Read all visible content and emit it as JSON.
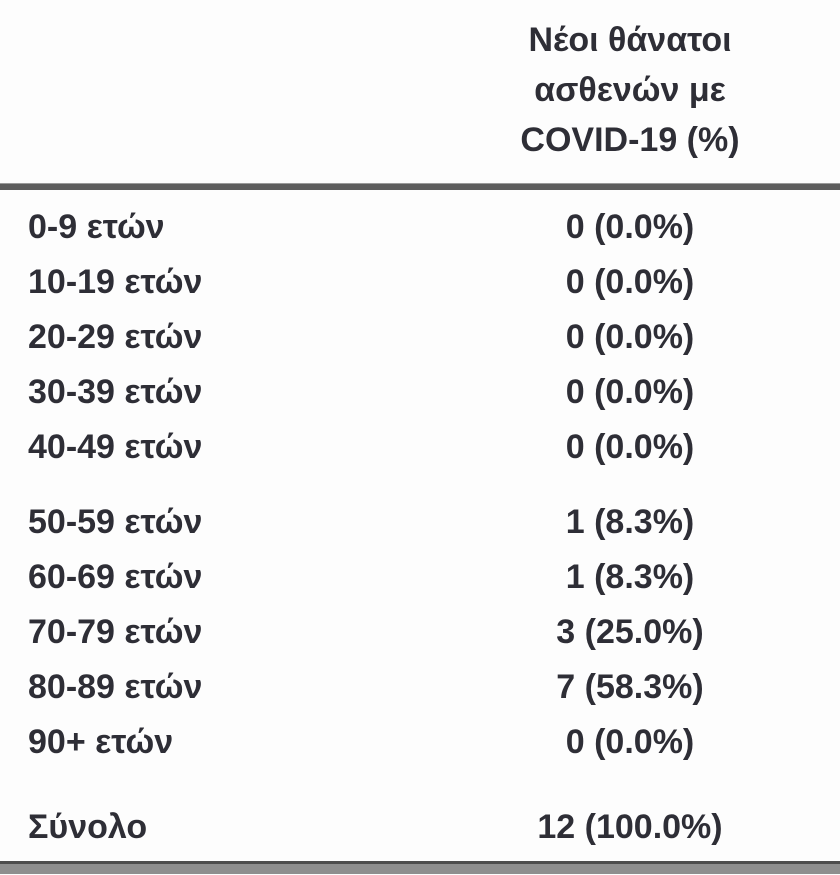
{
  "header": {
    "value_col_lines": [
      "Νέοι θάνατοι",
      "ασθενών με",
      "COVID-19 (%)"
    ]
  },
  "rows": [
    {
      "label": "0-9 ετών",
      "value": "0 (0.0%)"
    },
    {
      "label": "10-19 ετών",
      "value": "0 (0.0%)"
    },
    {
      "label": "20-29 ετών",
      "value": "0 (0.0%)"
    },
    {
      "label": "30-39 ετών",
      "value": "0 (0.0%)"
    },
    {
      "label": "40-49 ετών",
      "value": "0 (0.0%)"
    },
    {
      "label": "50-59 ετών",
      "value": "1 (8.3%)"
    },
    {
      "label": "60-69 ετών",
      "value": "1 (8.3%)"
    },
    {
      "label": "70-79 ετών",
      "value": "3 (25.0%)"
    },
    {
      "label": "80-89 ετών",
      "value": "7 (58.3%)"
    },
    {
      "label": "90+ ετών",
      "value": "0 (0.0%)"
    }
  ],
  "total": {
    "label": "Σύνολο",
    "value": "12 (100.0%)"
  },
  "colors": {
    "text": "#2e2e36",
    "header_rule": "#5d5d5d",
    "bottom_bar": "#8e8e8e",
    "background": "#fdfdfd"
  }
}
